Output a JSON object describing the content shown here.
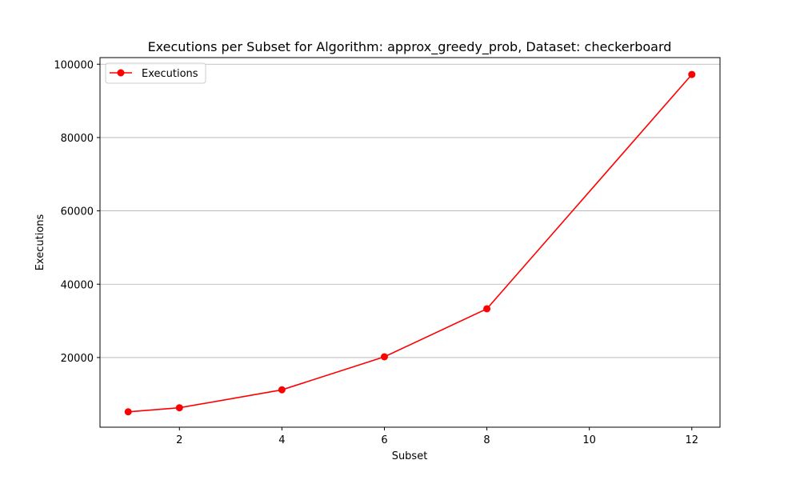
{
  "chart_data": {
    "type": "line",
    "title": "Executions per Subset for Algorithm: approx_greedy_prob, Dataset: checkerboard",
    "xlabel": "Subset",
    "ylabel": "Executions",
    "x": [
      1,
      2,
      4,
      6,
      8,
      12
    ],
    "series": [
      {
        "name": "Executions",
        "color": "#ff0000",
        "marker": "circle",
        "values": [
          5200,
          6300,
          11200,
          20200,
          33300,
          97200
        ]
      }
    ],
    "xlim": [
      0.45,
      12.55
    ],
    "ylim": [
      1000,
      101800
    ],
    "xticks": [
      2,
      4,
      6,
      8,
      10,
      12
    ],
    "yticks": [
      20000,
      40000,
      60000,
      80000,
      100000
    ],
    "grid": "y-axis",
    "legend": "top-left"
  }
}
